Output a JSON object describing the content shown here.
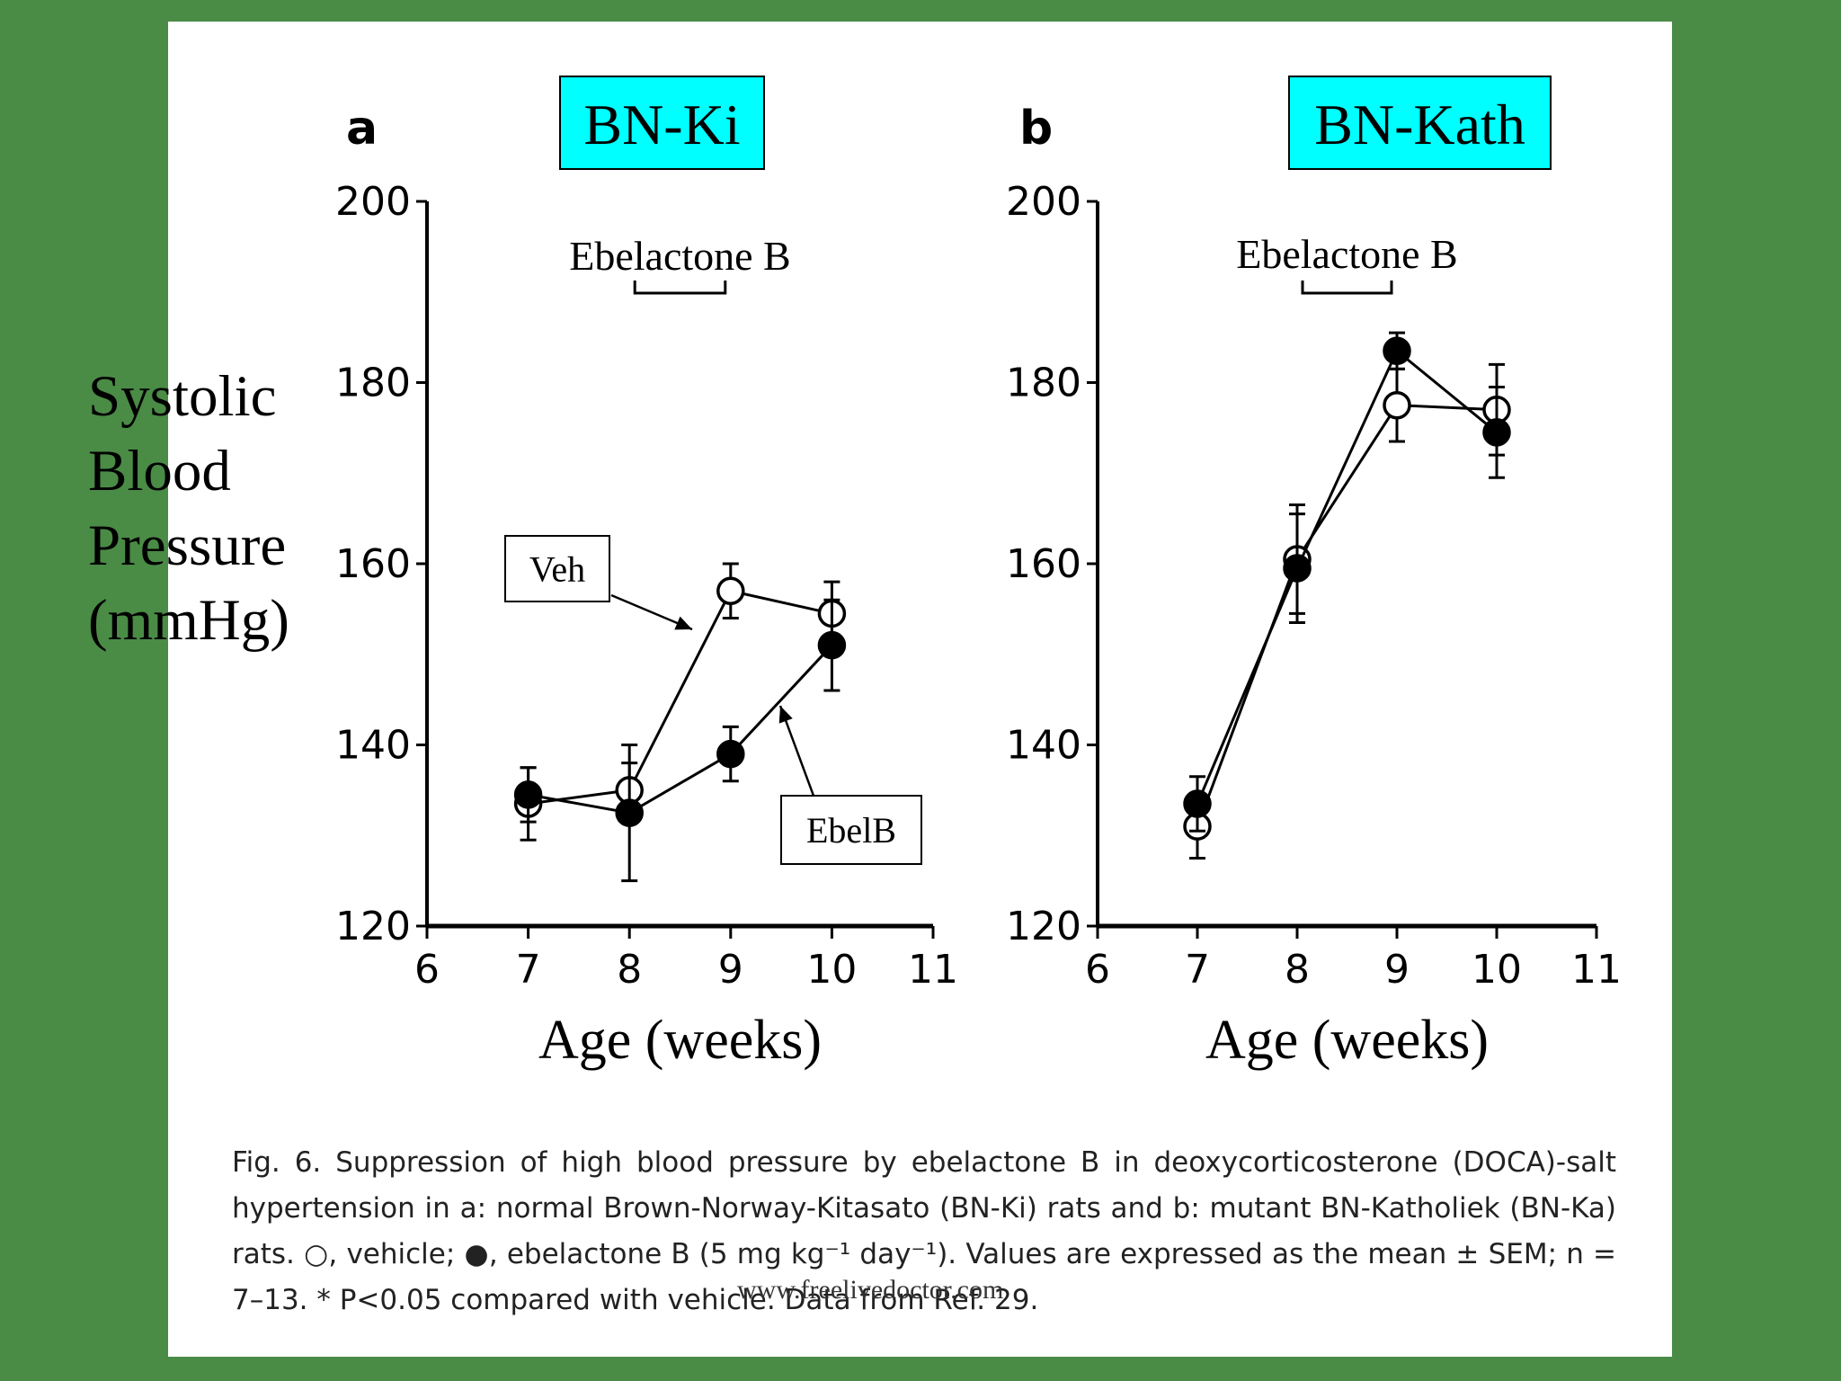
{
  "colors": {
    "background": "#4a8b46",
    "panel": "#ffffff",
    "title_box": "#00ffff",
    "ink": "#000000"
  },
  "y_axis_label": [
    "Systolic",
    "Blood",
    "Pressure",
    "(mmHg)"
  ],
  "chart_data": [
    {
      "type": "line",
      "panel_letter": "a",
      "title": "BN-Ki",
      "xlabel": "Age (weeks)",
      "xlim": [
        6,
        11
      ],
      "ylim": [
        120,
        200
      ],
      "xticks": [
        6,
        7,
        8,
        9,
        10,
        11
      ],
      "yticks": [
        120,
        140,
        160,
        180,
        200
      ],
      "treatment_label": "Ebelactone B",
      "treatment_range": [
        8,
        9
      ],
      "series": [
        {
          "name": "Veh",
          "marker": "open-circle",
          "x": [
            7,
            8,
            9,
            10
          ],
          "y": [
            133.5,
            135,
            157,
            154.5
          ],
          "err": [
            4,
            3,
            3,
            3.5
          ]
        },
        {
          "name": "EbelB",
          "marker": "filled-circle",
          "x": [
            7,
            8,
            9,
            10
          ],
          "y": [
            134.5,
            132.5,
            139,
            151
          ],
          "err": [
            3,
            7.5,
            3,
            5
          ]
        }
      ]
    },
    {
      "type": "line",
      "panel_letter": "b",
      "title": "BN-Kath",
      "xlabel": "Age (weeks)",
      "xlim": [
        6,
        11
      ],
      "ylim": [
        120,
        200
      ],
      "xticks": [
        6,
        7,
        8,
        9,
        10,
        11
      ],
      "yticks": [
        120,
        140,
        160,
        180,
        200
      ],
      "treatment_label": "Ebelactone B",
      "treatment_range": [
        8,
        9
      ],
      "series": [
        {
          "name": "vehicle",
          "marker": "open-circle",
          "x": [
            7,
            8,
            9,
            10
          ],
          "y": [
            131,
            160.5,
            177.5,
            177
          ],
          "err": [
            3.5,
            6,
            4,
            5
          ]
        },
        {
          "name": "ebelactone B",
          "marker": "filled-circle",
          "x": [
            7,
            8,
            9,
            10
          ],
          "y": [
            133.5,
            159.5,
            183.5,
            174.5
          ],
          "err": [
            3,
            6,
            2,
            5
          ]
        }
      ]
    }
  ],
  "caption": "Fig. 6. Suppression of high blood pressure by ebelactone B in deoxycorticosterone (DOCA)-salt hypertension in a: normal Brown-Norway-Kitasato (BN-Ki) rats and b: mutant BN-Katholiek (BN-Ka) rats. ○, vehicle; ●, ebelactone B (5 mg kg⁻¹ day⁻¹). Values are expressed as the mean ± SEM; n = 7–13. * P<0.05 compared with vehicle. Data from Ref. 29.",
  "watermark": "www.freelivedoctor.com"
}
